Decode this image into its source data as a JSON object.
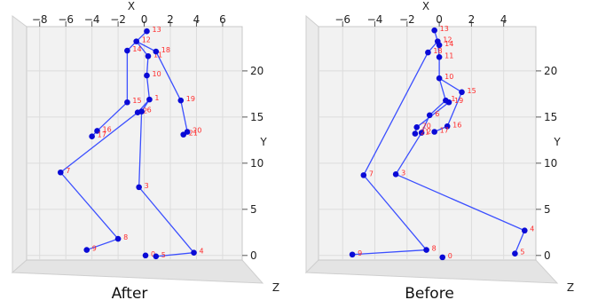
{
  "colors": {
    "line": "#3b4fff",
    "point": "#0a0ad6",
    "label": "#ff2a2a",
    "pane": "#f2f2f2",
    "grid": "#dcdcdc"
  },
  "chart_data": [
    {
      "type": "scatter",
      "title": "After",
      "xlabel": "X",
      "ylabel": "Y",
      "zlabel": "Z",
      "xticks": [
        "−8",
        "−6",
        "−4",
        "−2",
        "0",
        "2",
        "4",
        "6"
      ],
      "xtick_values": [
        -8,
        -6,
        -4,
        -2,
        0,
        2,
        4,
        6
      ],
      "yticks": [
        "0",
        "5",
        "10",
        "15",
        "20"
      ],
      "ytick_values": [
        0,
        5,
        10,
        15,
        20
      ],
      "xlim": [
        -9.0,
        7.5
      ],
      "ylim": [
        -0.5,
        24.8
      ],
      "grid": true,
      "points": [
        {
          "id": "0",
          "x": 0.1,
          "y": 0.0
        },
        {
          "id": "1",
          "x": 0.4,
          "y": 16.9
        },
        {
          "id": "2",
          "x": -0.5,
          "y": 15.5
        },
        {
          "id": "3",
          "x": -0.4,
          "y": 7.4
        },
        {
          "id": "4",
          "x": 3.8,
          "y": 0.3
        },
        {
          "id": "5",
          "x": 0.9,
          "y": -0.1
        },
        {
          "id": "6",
          "x": -0.2,
          "y": 15.6
        },
        {
          "id": "7",
          "x": -6.4,
          "y": 9.0
        },
        {
          "id": "8",
          "x": -2.0,
          "y": 1.8
        },
        {
          "id": "9",
          "x": -4.4,
          "y": 0.6
        },
        {
          "id": "10",
          "x": 0.2,
          "y": 19.5
        },
        {
          "id": "11",
          "x": 0.3,
          "y": 21.6
        },
        {
          "id": "12",
          "x": -0.6,
          "y": 23.2
        },
        {
          "id": "13",
          "x": 0.2,
          "y": 24.3
        },
        {
          "id": "14",
          "x": -1.3,
          "y": 22.2
        },
        {
          "id": "15",
          "x": -1.3,
          "y": 16.6
        },
        {
          "id": "16",
          "x": -3.6,
          "y": 13.5
        },
        {
          "id": "17",
          "x": -4.0,
          "y": 12.9
        },
        {
          "id": "18",
          "x": 0.9,
          "y": 22.1
        },
        {
          "id": "19",
          "x": 2.8,
          "y": 16.8
        },
        {
          "id": "20",
          "x": 3.3,
          "y": 13.4
        },
        {
          "id": "21",
          "x": 3.0,
          "y": 13.1
        }
      ],
      "bones": [
        [
          "13",
          "12"
        ],
        [
          "12",
          "14"
        ],
        [
          "12",
          "18"
        ],
        [
          "12",
          "11"
        ],
        [
          "11",
          "10"
        ],
        [
          "10",
          "1"
        ],
        [
          "1",
          "2"
        ],
        [
          "1",
          "6"
        ],
        [
          "14",
          "15"
        ],
        [
          "15",
          "16"
        ],
        [
          "16",
          "17"
        ],
        [
          "18",
          "19"
        ],
        [
          "19",
          "20"
        ],
        [
          "20",
          "21"
        ],
        [
          "2",
          "7"
        ],
        [
          "7",
          "8"
        ],
        [
          "8",
          "9"
        ],
        [
          "6",
          "3"
        ],
        [
          "3",
          "4"
        ],
        [
          "4",
          "5"
        ]
      ]
    },
    {
      "type": "scatter",
      "title": "Before",
      "xlabel": "X",
      "ylabel": "Y",
      "zlabel": "Z",
      "xticks": [
        "−6",
        "−4",
        "−2",
        "0",
        "2",
        "4"
      ],
      "xtick_values": [
        -6,
        -4,
        -2,
        0,
        2,
        4
      ],
      "yticks": [
        "0",
        "5",
        "10",
        "15",
        "20"
      ],
      "ytick_values": [
        0,
        5,
        10,
        15,
        20
      ],
      "xlim": [
        -7.5,
        6.0
      ],
      "ylim": [
        -0.5,
        24.8
      ],
      "grid": true,
      "points": [
        {
          "id": "0",
          "x": 0.2,
          "y": -0.2
        },
        {
          "id": "1",
          "x": 0.4,
          "y": 16.8
        },
        {
          "id": "2",
          "x": -1.1,
          "y": 13.3
        },
        {
          "id": "3",
          "x": -2.7,
          "y": 8.8
        },
        {
          "id": "4",
          "x": 5.3,
          "y": 2.7
        },
        {
          "id": "5",
          "x": 4.7,
          "y": 0.2
        },
        {
          "id": "6",
          "x": -0.6,
          "y": 15.2
        },
        {
          "id": "7",
          "x": -4.7,
          "y": 8.7
        },
        {
          "id": "8",
          "x": -0.8,
          "y": 0.6
        },
        {
          "id": "9",
          "x": -5.4,
          "y": 0.1
        },
        {
          "id": "10",
          "x": 0.0,
          "y": 19.2
        },
        {
          "id": "11",
          "x": 0.0,
          "y": 21.5
        },
        {
          "id": "12",
          "x": -0.1,
          "y": 23.2
        },
        {
          "id": "13",
          "x": -0.3,
          "y": 24.4
        },
        {
          "id": "14",
          "x": 0.0,
          "y": 22.8
        },
        {
          "id": "15",
          "x": 1.4,
          "y": 17.7
        },
        {
          "id": "16",
          "x": 0.5,
          "y": 14.0
        },
        {
          "id": "17",
          "x": -0.3,
          "y": 13.4
        },
        {
          "id": "18",
          "x": -0.7,
          "y": 22.0
        },
        {
          "id": "19",
          "x": 0.6,
          "y": 16.6
        },
        {
          "id": "20",
          "x": -1.4,
          "y": 13.9
        },
        {
          "id": "21",
          "x": -1.5,
          "y": 13.2
        }
      ],
      "bones": [
        [
          "13",
          "12"
        ],
        [
          "12",
          "14"
        ],
        [
          "12",
          "18"
        ],
        [
          "12",
          "11"
        ],
        [
          "11",
          "10"
        ],
        [
          "10",
          "1"
        ],
        [
          "10",
          "15"
        ],
        [
          "1",
          "6"
        ],
        [
          "1",
          "19"
        ],
        [
          "6",
          "2"
        ],
        [
          "2",
          "3"
        ],
        [
          "3",
          "4"
        ],
        [
          "4",
          "5"
        ],
        [
          "15",
          "16"
        ],
        [
          "16",
          "17"
        ],
        [
          "19",
          "20"
        ],
        [
          "20",
          "21"
        ],
        [
          "18",
          "7"
        ],
        [
          "7",
          "8"
        ],
        [
          "8",
          "9"
        ]
      ]
    }
  ]
}
